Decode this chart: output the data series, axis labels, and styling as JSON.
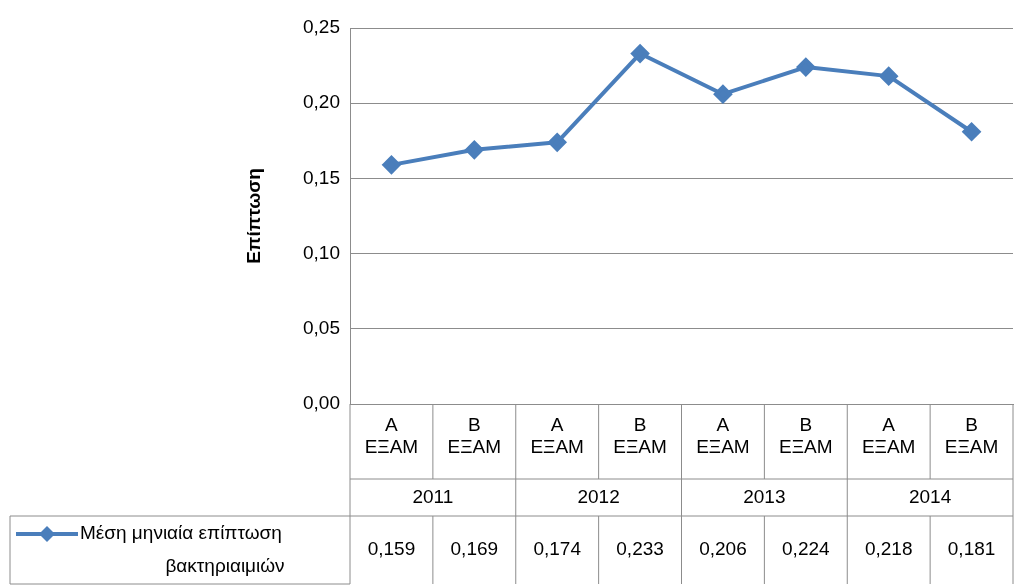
{
  "chart_data": {
    "type": "line",
    "ylabel": "Επίπτωση",
    "categories": [
      "Α ΕΞΑΜ",
      "Β ΕΞΑΜ",
      "Α ΕΞΑΜ",
      "Β ΕΞΑΜ",
      "Α ΕΞΑΜ",
      "Β ΕΞΑΜ",
      "Α ΕΞΑΜ",
      "Β ΕΞΑΜ"
    ],
    "series": [
      {
        "name": "Μέση μηνιαία επίπτωση βακτηριαιμιών",
        "color": "#4a7ebb",
        "values": [
          0.159,
          0.169,
          0.174,
          0.233,
          0.206,
          0.224,
          0.218,
          0.181
        ]
      }
    ],
    "ylim": [
      0,
      0.25
    ],
    "yticks": [
      {
        "value": 0,
        "label": "0,00"
      },
      {
        "value": 0.05,
        "label": "0,05"
      },
      {
        "value": 0.1,
        "label": "0,10"
      },
      {
        "value": 0.15,
        "label": "0,15"
      },
      {
        "value": 0.2,
        "label": "0,20"
      },
      {
        "value": 0.25,
        "label": "0,25"
      }
    ],
    "grid": "y",
    "marker": "diamond",
    "line_style": "solid",
    "legend": "bottom left",
    "value_labels": [
      "0,159",
      "0,169",
      "0,174",
      "0,233",
      "0,206",
      "0,224",
      "0,218",
      "0,181"
    ],
    "annotations": [
      "2011",
      "2012",
      "2013",
      "2014"
    ]
  }
}
